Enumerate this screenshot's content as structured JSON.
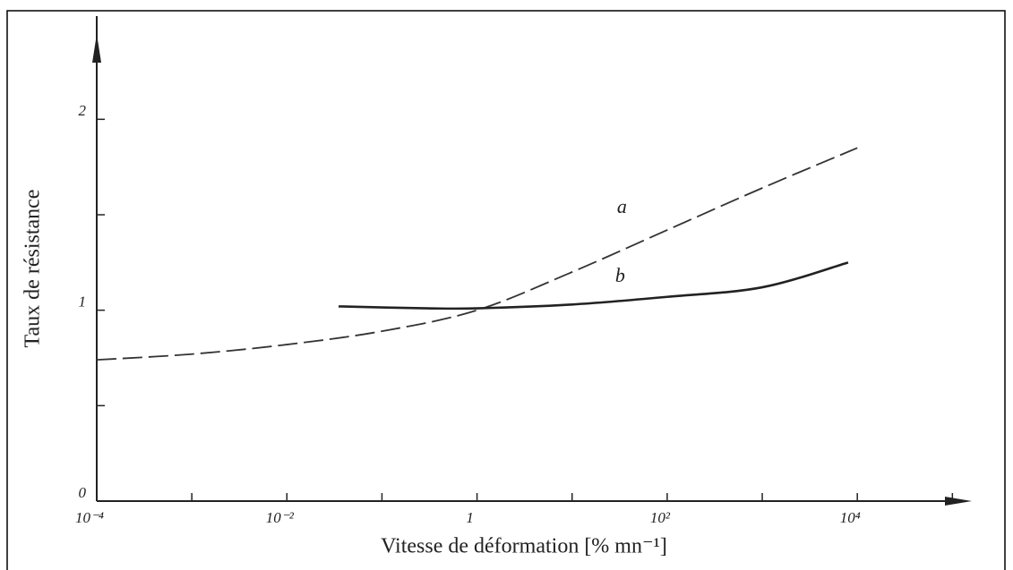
{
  "chart_data": {
    "type": "line",
    "xlabel": "Vitesse de déformation [% mn⁻¹]",
    "ylabel": "Taux de résistance",
    "xscale": "log",
    "xlim": [
      0.0001,
      160000
    ],
    "ylim": [
      0,
      2.4
    ],
    "xticks": [
      {
        "value": 0.0001,
        "label": "10⁻⁴"
      },
      {
        "value": 0.01,
        "label": "10⁻²"
      },
      1,
      {
        "value": 100,
        "label": "10²"
      },
      {
        "value": 10000,
        "label": "10⁴"
      }
    ],
    "xminor": [
      0.001,
      0.1,
      10,
      1000,
      100000
    ],
    "yticks": [
      0,
      1,
      2
    ],
    "yminor": [
      0.5,
      1.5
    ],
    "color": "#222222",
    "series": [
      {
        "name": "a",
        "style": "dashed",
        "color": "#333333",
        "x": [
          0.0001,
          0.001,
          0.01,
          0.1,
          1,
          10,
          100,
          1000,
          10000
        ],
        "values": [
          0.74,
          0.77,
          0.82,
          0.89,
          1.0,
          1.2,
          1.42,
          1.64,
          1.85
        ]
      },
      {
        "name": "b",
        "style": "solid",
        "color": "#222222",
        "x": [
          0.035,
          0.3,
          1,
          10,
          100,
          1000,
          8000
        ],
        "values": [
          1.02,
          1.01,
          1.01,
          1.03,
          1.07,
          1.12,
          1.25
        ]
      }
    ]
  }
}
